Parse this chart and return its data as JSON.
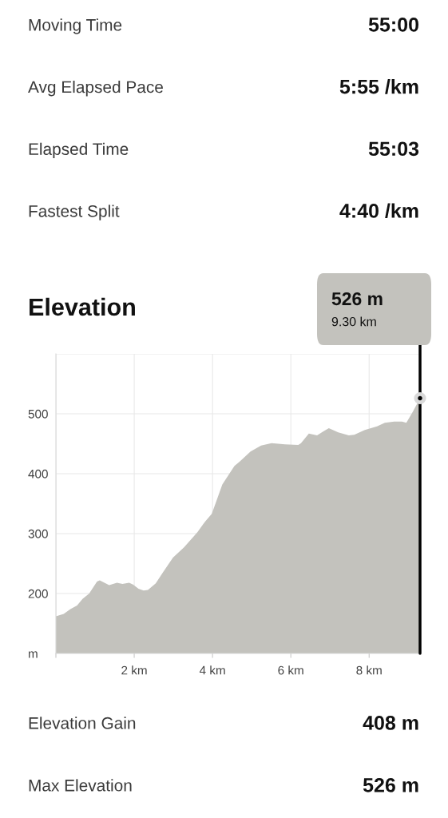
{
  "chart_data": [
    {
      "type": "other",
      "annotations": [
        "Moving Time",
        "55:00",
        "Avg Elapsed Pace",
        "5:55 /km",
        "Elapsed Time",
        "55:03",
        "Fastest Split",
        "4:40 /km"
      ]
    },
    {
      "type": "area",
      "title": "Elevation",
      "x": [
        0.0,
        0.2,
        0.37,
        0.54,
        0.68,
        0.85,
        1.05,
        1.12,
        1.36,
        1.56,
        1.7,
        1.87,
        1.97,
        2.11,
        2.24,
        2.35,
        2.55,
        2.72,
        2.99,
        3.27,
        3.61,
        3.81,
        3.98,
        4.08,
        4.25,
        4.39,
        4.56,
        4.69,
        4.97,
        5.24,
        5.51,
        5.85,
        6.19,
        6.26,
        6.46,
        6.67,
        6.84,
        6.97,
        7.21,
        7.48,
        7.62,
        7.89,
        8.2,
        8.4,
        8.64,
        8.84,
        8.95,
        9.12,
        9.3
      ],
      "series": [
        {
          "type": "area",
          "color": "#c3c2bd",
          "values": [
            162,
            166,
            174,
            180,
            191,
            200,
            220,
            222,
            214,
            218,
            216,
            218,
            215,
            208,
            205,
            206,
            217,
            234,
            260,
            277,
            302,
            320,
            333,
            351,
            382,
            396,
            413,
            420,
            437,
            447,
            451,
            449,
            448,
            451,
            467,
            464,
            471,
            476,
            469,
            464,
            465,
            473,
            479,
            485,
            487,
            487,
            485,
            504,
            526
          ]
        },
        {
          "type": "scatter",
          "x": [
            9.3
          ],
          "values": [
            526
          ],
          "color": "#000000",
          "marker": "circle"
        }
      ],
      "xlim": [
        0,
        9.3
      ],
      "ylim": [
        100,
        600
      ],
      "xticks": [
        {
          "value": 0,
          "label": null
        },
        {
          "value": 2,
          "label": "2 km"
        },
        {
          "value": 4,
          "label": "4 km"
        },
        {
          "value": 6,
          "label": "6 km"
        },
        {
          "value": 8,
          "label": "8 km"
        }
      ],
      "yticks": [
        {
          "value": 100,
          "label": "m"
        },
        200,
        300,
        400,
        500,
        {
          "value": 600,
          "label": null
        }
      ],
      "grid": true,
      "ref_lines": [
        {
          "axis": "x",
          "value": 9.3,
          "color": "#000000"
        }
      ],
      "annotations": [
        "526 m",
        "9.30 km"
      ]
    },
    {
      "type": "other",
      "annotations": [
        "Elevation Gain",
        "408 m",
        "Max Elevation",
        "526 m"
      ]
    }
  ]
}
